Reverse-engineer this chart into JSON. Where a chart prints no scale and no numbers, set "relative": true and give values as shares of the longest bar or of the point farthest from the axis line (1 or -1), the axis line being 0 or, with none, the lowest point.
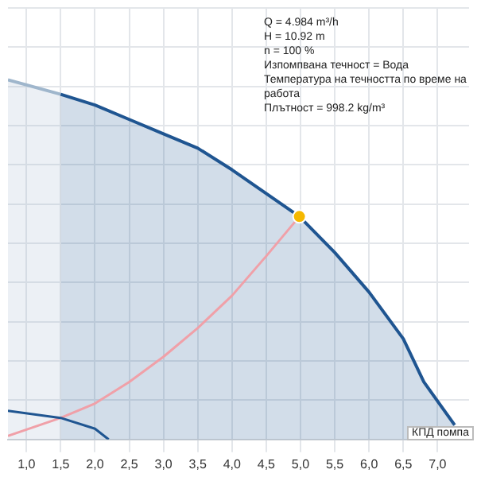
{
  "chart_data": {
    "type": "area",
    "relative": true,
    "xlim": [
      0.73,
      7.46
    ],
    "xticks": [
      {
        "value": 1,
        "label": "1,0"
      },
      {
        "value": 1.5,
        "label": "1,5"
      },
      {
        "value": 2,
        "label": "2,0"
      },
      {
        "value": 2.5,
        "label": "2,5"
      },
      {
        "value": 3,
        "label": "3,0"
      },
      {
        "value": 3.5,
        "label": "3,5"
      },
      {
        "value": 4,
        "label": "4,0"
      },
      {
        "value": 4.5,
        "label": "4,5"
      },
      {
        "value": 5,
        "label": "5,0"
      },
      {
        "value": 5.5,
        "label": "5,5"
      },
      {
        "value": 6,
        "label": "6,0"
      },
      {
        "value": 6.5,
        "label": "6,5"
      },
      {
        "value": 7,
        "label": "7,0"
      }
    ],
    "grid": true,
    "legend": false,
    "tick_labels": "x",
    "line_style": "solid",
    "series": [
      {
        "color": "#9fb6cc",
        "x": [
          0.73,
          1.5
        ],
        "values": [
          1,
          0.96
        ]
      },
      {
        "color": "#1f5591",
        "x": [
          1.5,
          2,
          2.5,
          3,
          3.5,
          4,
          4.984,
          5.5,
          6,
          6.5,
          6.8,
          7.25
        ],
        "values": [
          0.96,
          0.93,
          0.89,
          0.85,
          0.81,
          0.75,
          0.62,
          0.52,
          0.41,
          0.28,
          0.16,
          0.04
        ]
      },
      {
        "type": "line",
        "color": "#f0a0a8",
        "x": [
          0.73,
          1.5,
          2,
          2.5,
          3,
          3.5,
          4,
          4.5,
          4.984
        ],
        "values": [
          0.01,
          0.06,
          0.1,
          0.16,
          0.23,
          0.31,
          0.4,
          0.51,
          0.62
        ]
      },
      {
        "type": "line",
        "color": "#1f5591",
        "x": [
          0.73,
          1.5,
          2,
          2.2
        ],
        "values": [
          0.08,
          0.06,
          0.03,
          0
        ]
      },
      {
        "type": "scatter",
        "color": "#f5b800",
        "x": [
          4.984
        ],
        "values": [
          0.62
        ]
      }
    ],
    "annotations": [
      "Q = 4.984 m³/h",
      "H = 10.92 m",
      "n = 100 %",
      "Изпомпвана течност = Вода",
      "Температура на течността по време на работа",
      "Плътност = 998.2 kg/m³",
      "КПД помпа"
    ]
  }
}
